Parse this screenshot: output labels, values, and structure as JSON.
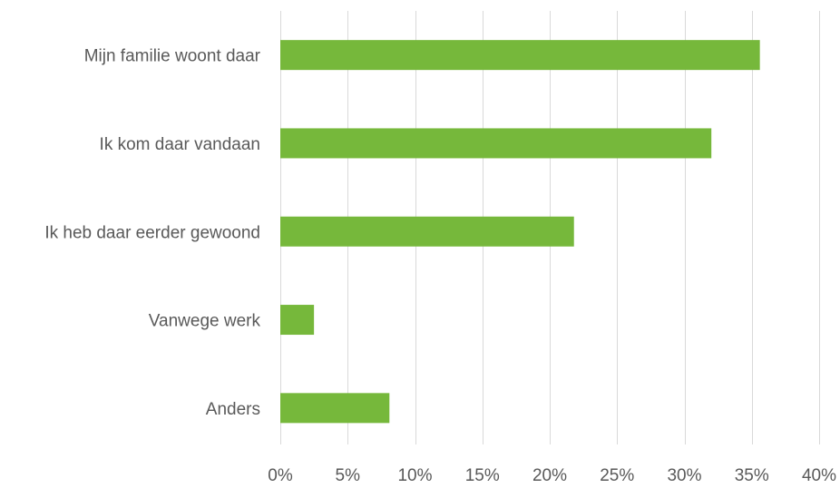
{
  "chart_data": {
    "type": "bar",
    "orientation": "horizontal",
    "categories": [
      "Mijn familie woont daar",
      "Ik kom daar vandaan",
      "Ik heb daar eerder gewoond",
      "Vanwege werk",
      "Anders"
    ],
    "values": [
      35.6,
      32.0,
      21.8,
      2.5,
      8.1
    ],
    "unit": "%",
    "xlim": [
      0,
      40
    ],
    "xticks": [
      0,
      5,
      10,
      15,
      20,
      25,
      30,
      35,
      40
    ],
    "xtick_labels": [
      "0%",
      "5%",
      "10%",
      "15%",
      "20%",
      "25%",
      "30%",
      "35%",
      "40%"
    ],
    "grid": "vertical",
    "legend": "none",
    "colors": {
      "bar": "#76b83b",
      "grid": "#d9d9d9",
      "text": "#595959"
    }
  }
}
